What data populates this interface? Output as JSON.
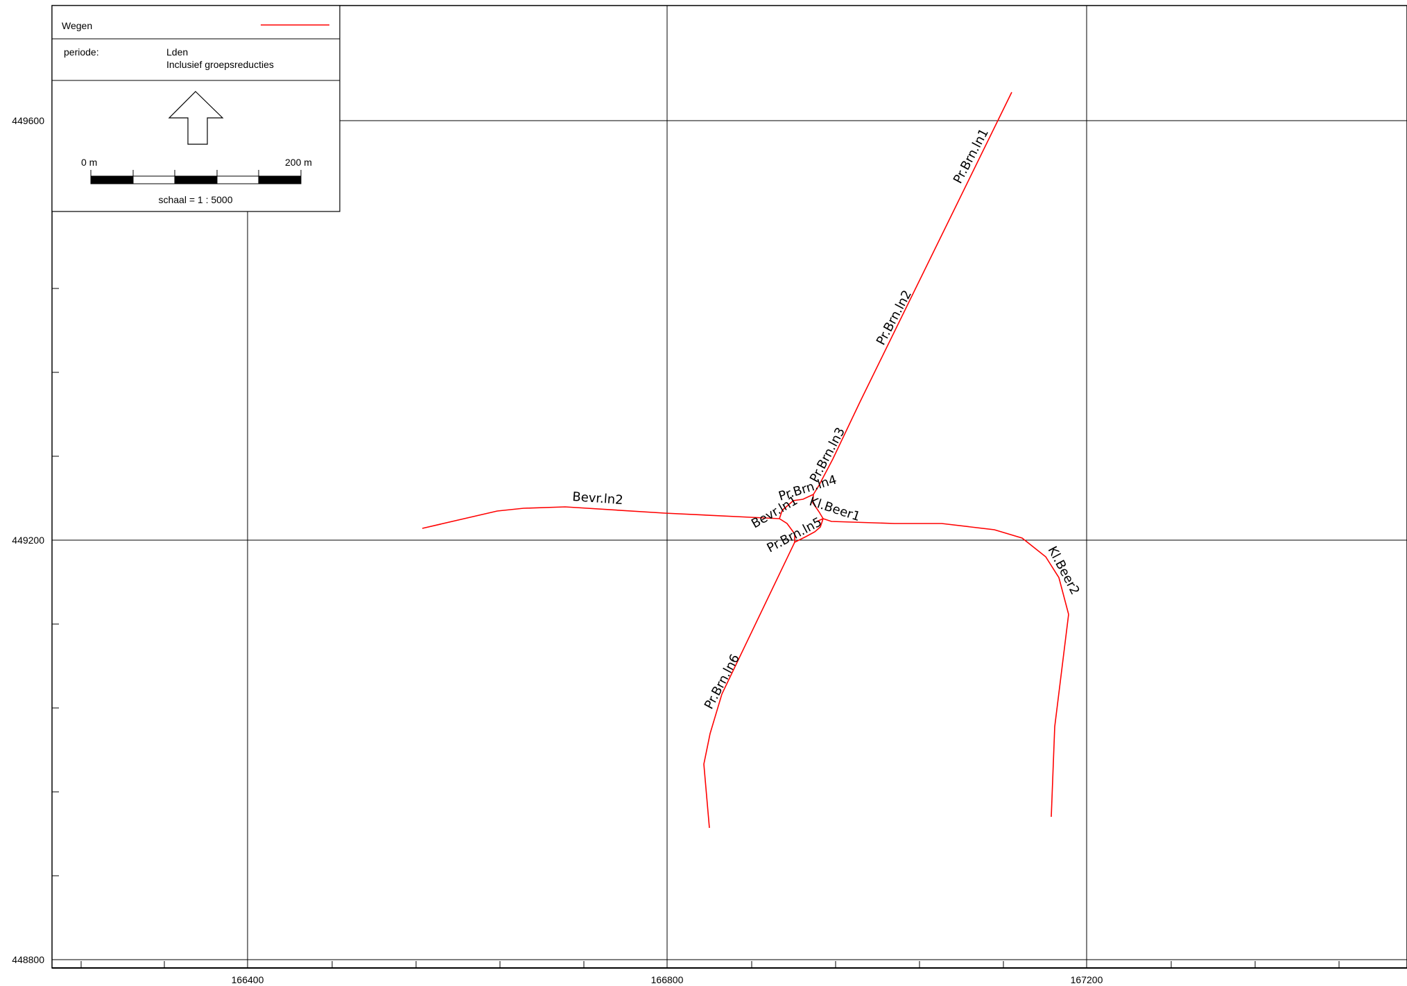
{
  "legend": {
    "layer_label": "Wegen",
    "line_color": "#ff0000",
    "periode_label": "periode:",
    "periode_value": "Lden",
    "periode_note": "Inclusief groepsreducties",
    "north_arrow_icon": "north-arrow-icon",
    "scalebar_start": "0 m",
    "scalebar_end": "200 m",
    "scale_text": "schaal = 1 : 5000"
  },
  "axes": {
    "x_labels": [
      "166400",
      "166800",
      "167200"
    ],
    "y_labels": [
      "449600",
      "449200",
      "448800"
    ]
  },
  "roads": [
    {
      "name": "Pr.Brn.ln1"
    },
    {
      "name": "Pr.Brn.ln2"
    },
    {
      "name": "Pr.Brn.ln3"
    },
    {
      "name": "Pr.Brn.ln4"
    },
    {
      "name": "Pr.Brn.ln5"
    },
    {
      "name": "Pr.Brn.ln6"
    },
    {
      "name": "Bevr.ln2"
    },
    {
      "name": "Bevr.ln1"
    },
    {
      "name": "Kl.Beer1"
    },
    {
      "name": "Kl.Beer2"
    }
  ],
  "colors": {
    "road": "#ff0000",
    "grid": "#000000"
  }
}
